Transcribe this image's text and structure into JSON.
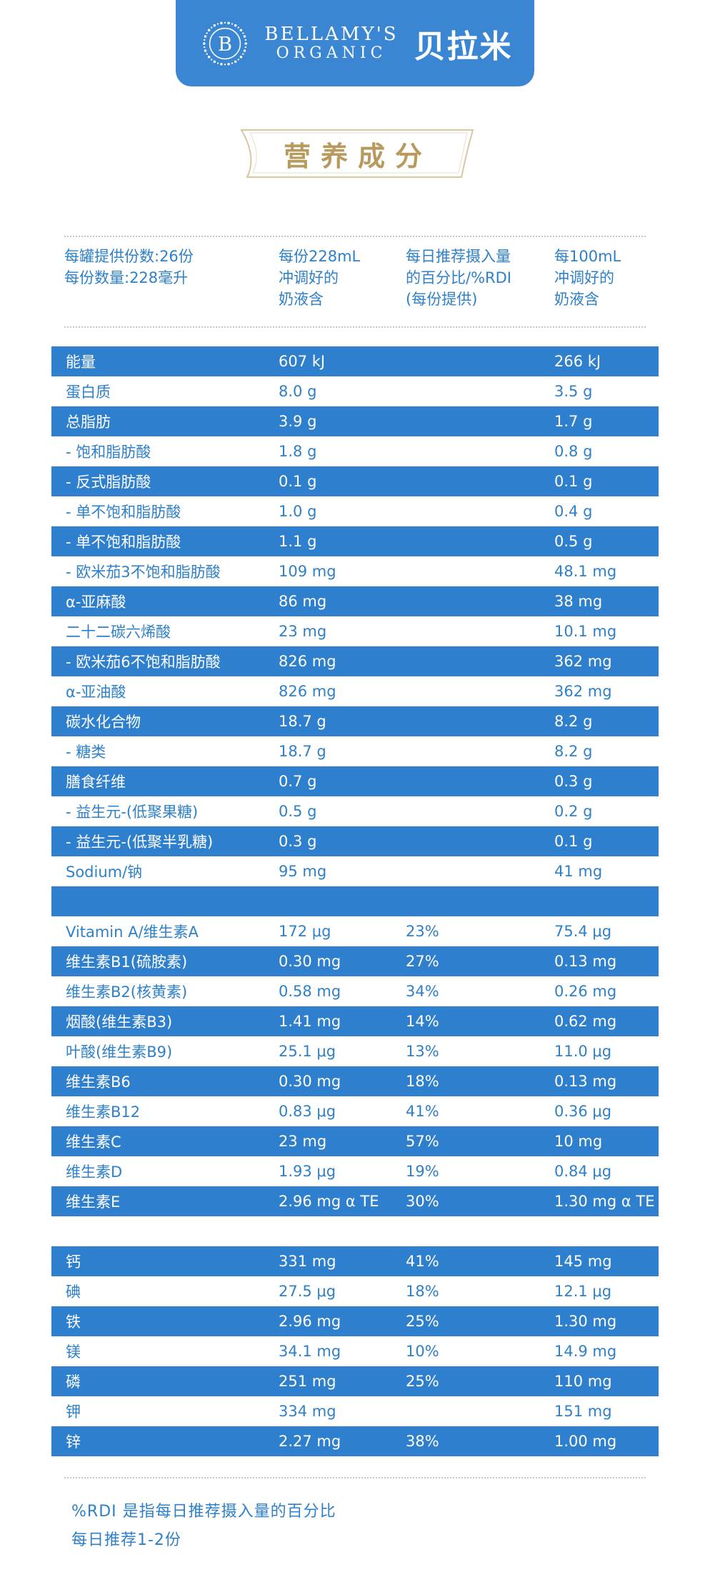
{
  "brand": {
    "logo_initial": "B",
    "name_en_line1": "BELLAMY'S",
    "name_en_line2": "ORGANIC",
    "name_cn": "贝拉米"
  },
  "title": "营养成分",
  "header": {
    "col1": "每罐提供份数:26份\n每份数量:228毫升",
    "col2": "每份228mL\n冲调好的\n奶液含",
    "col3": "每日推荐摄入量\n的百分比/%RDI\n(每份提供)",
    "col4": "每100mL\n冲调好的\n奶液含"
  },
  "rows": [
    {
      "name": "能量",
      "per_serving": "607 kJ",
      "rdi": "",
      "per_100ml": "266 kJ",
      "blue": true
    },
    {
      "name": "蛋白质",
      "per_serving": "8.0 g",
      "rdi": "",
      "per_100ml": "3.5 g",
      "blue": false
    },
    {
      "name": "总脂肪",
      "per_serving": "3.9 g",
      "rdi": "",
      "per_100ml": "1.7 g",
      "blue": true
    },
    {
      "name": " - 饱和脂肪酸",
      "per_serving": "1.8 g",
      "rdi": "",
      "per_100ml": "0.8 g",
      "blue": false
    },
    {
      "name": " - 反式脂肪酸",
      "per_serving": "0.1 g",
      "rdi": "",
      "per_100ml": "0.1 g",
      "blue": true
    },
    {
      "name": " - 单不饱和脂肪酸",
      "per_serving": "1.0 g",
      "rdi": "",
      "per_100ml": "0.4 g",
      "blue": false
    },
    {
      "name": " - 单不饱和脂肪酸",
      "per_serving": "1.1 g",
      "rdi": "",
      "per_100ml": "0.5 g",
      "blue": true
    },
    {
      "name": " - 欧米茄3不饱和脂肪酸",
      "per_serving": "109 mg",
      "rdi": "",
      "per_100ml": "48.1 mg",
      "blue": false
    },
    {
      "name": "α-亚麻酸",
      "per_serving": "86 mg",
      "rdi": "",
      "per_100ml": "38 mg",
      "blue": true
    },
    {
      "name": "二十二碳六烯酸",
      "per_serving": "23 mg",
      "rdi": "",
      "per_100ml": "10.1 mg",
      "blue": false
    },
    {
      "name": " - 欧米茄6不饱和脂肪酸",
      "per_serving": "826 mg",
      "rdi": "",
      "per_100ml": "362 mg",
      "blue": true
    },
    {
      "name": "α-亚油酸",
      "per_serving": "826 mg",
      "rdi": "",
      "per_100ml": "362 mg",
      "blue": false
    },
    {
      "name": "碳水化合物",
      "per_serving": "18.7 g",
      "rdi": "",
      "per_100ml": "8.2 g",
      "blue": true
    },
    {
      "name": " - 糖类",
      "per_serving": "18.7 g",
      "rdi": "",
      "per_100ml": "8.2 g",
      "blue": false
    },
    {
      "name": "膳食纤维",
      "per_serving": "0.7 g",
      "rdi": "",
      "per_100ml": "0.3 g",
      "blue": true
    },
    {
      "name": " - 益生元-(低聚果糖)",
      "per_serving": "0.5 g",
      "rdi": "",
      "per_100ml": "0.2 g",
      "blue": false
    },
    {
      "name": " - 益生元-(低聚半乳糖)",
      "per_serving": "0.3 g",
      "rdi": "",
      "per_100ml": "0.1 g",
      "blue": true
    },
    {
      "name": "Sodium/钠",
      "per_serving": "95 mg",
      "rdi": "",
      "per_100ml": "41 mg",
      "blue": false
    },
    {
      "name": "",
      "per_serving": "",
      "rdi": "",
      "per_100ml": "",
      "blue": true
    },
    {
      "name": "Vitamin A/维生素A",
      "per_serving": "172 μg",
      "rdi": "23%",
      "per_100ml": "75.4 μg",
      "blue": false
    },
    {
      "name": "维生素B1(硫胺素)",
      "per_serving": "0.30 mg",
      "rdi": "27%",
      "per_100ml": "0.13 mg",
      "blue": true
    },
    {
      "name": "维生素B2(核黄素)",
      "per_serving": "0.58 mg",
      "rdi": "34%",
      "per_100ml": "0.26 mg",
      "blue": false
    },
    {
      "name": "烟酸(维生素B3)",
      "per_serving": "1.41 mg",
      "rdi": "14%",
      "per_100ml": "0.62 mg",
      "blue": true
    },
    {
      "name": "叶酸(维生素B9)",
      "per_serving": "25.1 μg",
      "rdi": "13%",
      "per_100ml": "11.0 μg",
      "blue": false
    },
    {
      "name": "维生素B6",
      "per_serving": "0.30 mg",
      "rdi": "18%",
      "per_100ml": "0.13 mg",
      "blue": true
    },
    {
      "name": "维生素B12",
      "per_serving": "0.83 μg",
      "rdi": "41%",
      "per_100ml": "0.36 μg",
      "blue": false
    },
    {
      "name": "维生素C",
      "per_serving": "23 mg",
      "rdi": "57%",
      "per_100ml": "10 mg",
      "blue": true
    },
    {
      "name": "维生素D",
      "per_serving": "1.93 μg",
      "rdi": "19%",
      "per_100ml": "0.84 μg",
      "blue": false
    },
    {
      "name": "维生素E",
      "per_serving": "2.96 mg α TE",
      "rdi": "30%",
      "per_100ml": "1.30 mg α TE",
      "blue": true
    },
    {
      "name": "",
      "per_serving": "",
      "rdi": "",
      "per_100ml": "",
      "blue": false
    },
    {
      "name": "钙",
      "per_serving": "331 mg",
      "rdi": "41%",
      "per_100ml": "145 mg",
      "blue": true
    },
    {
      "name": "碘",
      "per_serving": "27.5 μg",
      "rdi": "18%",
      "per_100ml": "12.1 μg",
      "blue": false
    },
    {
      "name": "铁",
      "per_serving": "2.96 mg",
      "rdi": "25%",
      "per_100ml": "1.30 mg",
      "blue": true
    },
    {
      "name": "镁",
      "per_serving": "34.1 mg",
      "rdi": "10%",
      "per_100ml": "14.9 mg",
      "blue": false
    },
    {
      "name": "磷",
      "per_serving": "251 mg",
      "rdi": "25%",
      "per_100ml": "110 mg",
      "blue": true
    },
    {
      "name": "钾",
      "per_serving": "334 mg",
      "rdi": "",
      "per_100ml": "151 mg",
      "blue": false
    },
    {
      "name": "锌",
      "per_serving": "2.27 mg",
      "rdi": "38%",
      "per_100ml": "1.00 mg",
      "blue": true
    }
  ],
  "footer": {
    "note1": "%RDI 是指每日推荐摄入量的百分比",
    "note2": "每日推荐1-2份"
  },
  "colors": {
    "brand_blue": "#3a86d3",
    "row_blue": "#2f7fcf",
    "text_blue": "#2e80c9",
    "gold": "#b99a5e"
  }
}
